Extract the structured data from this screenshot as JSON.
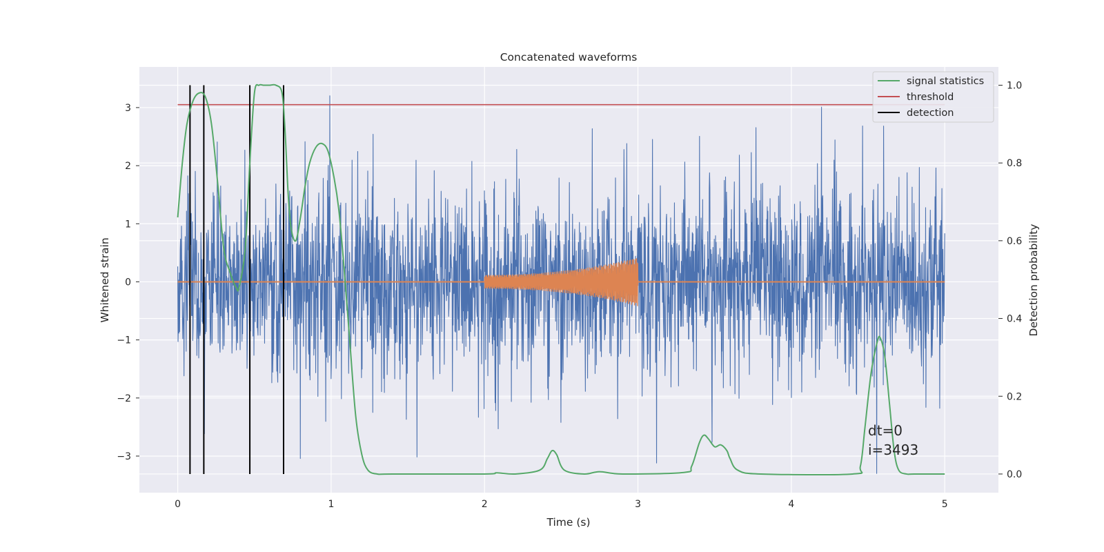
{
  "chart_data": {
    "type": "line",
    "title": "Concatenated waveforms",
    "xlabel": "Time (s)",
    "ylabel": "Whitened strain",
    "y2label": "Detection probability",
    "xlim": [
      -0.25,
      5.35
    ],
    "ylim": [
      -3.63,
      3.7
    ],
    "y2lim": [
      -0.048,
      1.047
    ],
    "xticks": [
      0,
      1,
      2,
      3,
      4,
      5
    ],
    "yticks": [
      -3,
      -2,
      -1,
      0,
      1,
      2,
      3
    ],
    "y2ticks": [
      0.0,
      0.2,
      0.4,
      0.6,
      0.8,
      1.0
    ],
    "grid": true,
    "legend_position": "top-right",
    "colors": {
      "strain": "#4c72b0",
      "template": "#dd8452",
      "signal_statistics": "#55a868",
      "threshold": "#c44e52",
      "detection": "#000000",
      "background": "#eaeaf2",
      "grid": "#ffffff"
    },
    "series": [
      {
        "key": "strain",
        "axis": "left",
        "note": "noisy whitened strain, amplitude ~0.7 std, peaks up to 3.3",
        "x_range": [
          0,
          5
        ],
        "noise_std": 0.75
      },
      {
        "key": "template",
        "axis": "left",
        "x_range": [
          2,
          3
        ],
        "amp_start": 0.12,
        "amp_end": 0.42
      },
      {
        "name": "signal statistics",
        "axis": "right",
        "x": [
          0,
          0.03,
          0.06,
          0.1,
          0.14,
          0.18,
          0.22,
          0.26,
          0.3,
          0.34,
          0.38,
          0.4,
          0.44,
          0.47,
          0.5,
          0.53,
          0.56,
          0.6,
          0.64,
          0.68,
          0.7,
          0.72,
          0.74,
          0.77,
          0.8,
          0.83,
          0.86,
          0.9,
          0.94,
          0.98,
          1.02,
          1.05,
          1.08,
          1.12,
          1.16,
          1.2,
          1.24,
          1.3,
          1.4,
          2.0,
          2.08,
          2.2,
          2.36,
          2.41,
          2.44,
          2.47,
          2.52,
          2.65,
          2.75,
          2.9,
          3.3,
          3.35,
          3.4,
          3.43,
          3.46,
          3.5,
          3.54,
          3.58,
          3.6,
          3.65,
          3.8,
          4.4,
          4.45,
          4.48,
          4.52,
          4.56,
          4.58,
          4.61,
          4.64,
          4.67,
          4.7,
          4.75,
          4.8,
          5.0
        ],
        "y": [
          0.66,
          0.8,
          0.9,
          0.96,
          0.98,
          0.97,
          0.9,
          0.75,
          0.58,
          0.52,
          0.48,
          0.48,
          0.58,
          0.8,
          0.98,
          1.0,
          1.0,
          1.0,
          1.0,
          0.98,
          0.88,
          0.72,
          0.63,
          0.6,
          0.66,
          0.74,
          0.8,
          0.84,
          0.85,
          0.83,
          0.76,
          0.68,
          0.55,
          0.35,
          0.15,
          0.05,
          0.01,
          0.0,
          0.0,
          0.0,
          0.003,
          0.0,
          0.01,
          0.04,
          0.06,
          0.05,
          0.01,
          0.0,
          0.006,
          0.0,
          0.004,
          0.02,
          0.08,
          0.1,
          0.09,
          0.07,
          0.075,
          0.06,
          0.04,
          0.01,
          0.0,
          0.0,
          0.02,
          0.12,
          0.26,
          0.34,
          0.35,
          0.3,
          0.18,
          0.06,
          0.01,
          0.0,
          0.0,
          0.0
        ]
      },
      {
        "name": "threshold",
        "axis": "right",
        "value": 0.95,
        "x_range": [
          0,
          5
        ]
      },
      {
        "name": "detection",
        "axis": "right",
        "x": [
          0.08,
          0.17,
          0.47,
          0.69
        ],
        "y_range": [
          0.0,
          1.0
        ]
      }
    ],
    "annotations": [
      "dt=0",
      "i=3493"
    ],
    "tick_labels_x": [
      "0",
      "1",
      "2",
      "3",
      "4",
      "5"
    ],
    "tick_labels_y": [
      "−3",
      "−2",
      "−1",
      "0",
      "1",
      "2",
      "3"
    ],
    "tick_labels_y2": [
      "0.0",
      "0.2",
      "0.4",
      "0.6",
      "0.8",
      "1.0"
    ]
  }
}
